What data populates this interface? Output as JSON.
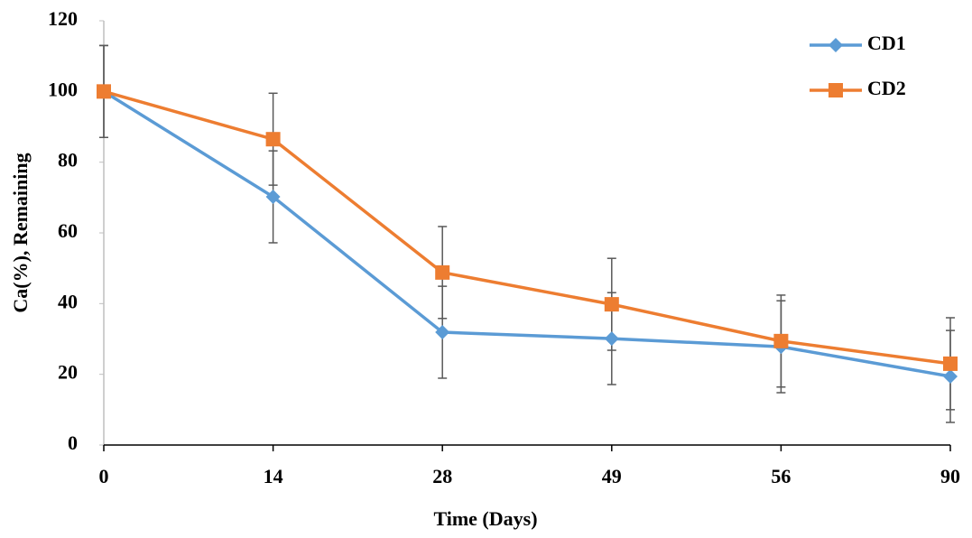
{
  "chart_data": {
    "type": "line",
    "x_label": "Time (Days)",
    "y_label": "Ca(%), Remaining",
    "categories": [
      "0",
      "14",
      "28",
      "49",
      "56",
      "90"
    ],
    "series": [
      {
        "name": "CD1",
        "color": "#5b9bd5",
        "marker": "diamond",
        "values": [
          100,
          70.2,
          31.9,
          30.1,
          27.8,
          19.4
        ],
        "errors": [
          13,
          13,
          13,
          13,
          13,
          13
        ]
      },
      {
        "name": "CD2",
        "color": "#ed7d31",
        "marker": "square",
        "values": [
          100,
          86.5,
          48.8,
          39.8,
          29.4,
          23
        ],
        "errors": [
          13,
          13,
          13,
          13,
          13,
          13
        ]
      }
    ],
    "ylim": [
      0,
      120
    ],
    "yticks": [
      0,
      20,
      40,
      60,
      80,
      100,
      120
    ],
    "grid": false,
    "legend": "top-right"
  }
}
